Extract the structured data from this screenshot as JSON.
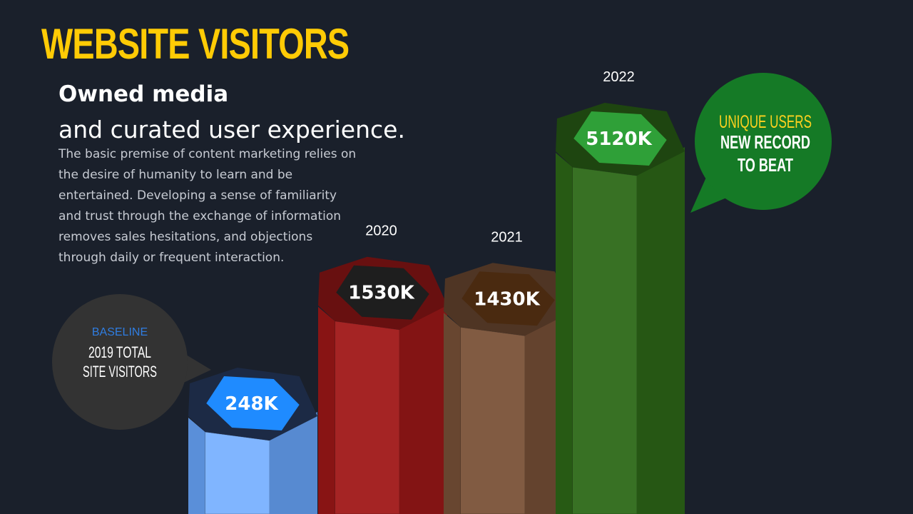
{
  "page": {
    "title": "WEBSITE VISITORS",
    "heading": "Owned media",
    "subheading": "and curated user experience.",
    "body": "The basic premise of content marketing relies on\nthe desire of humanity to learn and be\nentertained.  Developing a sense of familiarity\nand trust through the exchange of information\nremoves sales hesitations, and objections\nthrough daily or frequent interaction."
  },
  "colors": {
    "background": "#1a202b",
    "title": "#ffcb05",
    "body_text": "#c7cbd3",
    "baseline_bubble": "#333333",
    "baseline_accent": "#2f7de1",
    "record_bubble": "#157a26",
    "record_accent": "#ffd21f"
  },
  "callouts": {
    "baseline": {
      "kicker": "BASELINE",
      "line1": "2019 TOTAL",
      "line2": "SITE VISITORS"
    },
    "record": {
      "kicker": "UNIQUE USERS",
      "line1": "NEW RECORD",
      "line2": "TO BEAT"
    }
  },
  "chart_data": {
    "type": "bar",
    "title": "WEBSITE VISITORS",
    "categories": [
      "2019",
      "2020",
      "2021",
      "2022"
    ],
    "category_labels": [
      "",
      "2020",
      "2021",
      "2022"
    ],
    "values": [
      248,
      1530,
      1430,
      5120
    ],
    "value_labels": [
      "248K",
      "1530K",
      "1430K",
      "5120K"
    ],
    "unit": "K",
    "bar_colors": [
      "#6aa8ff",
      "#a01818",
      "#7a5238",
      "#2e6a18"
    ]
  }
}
